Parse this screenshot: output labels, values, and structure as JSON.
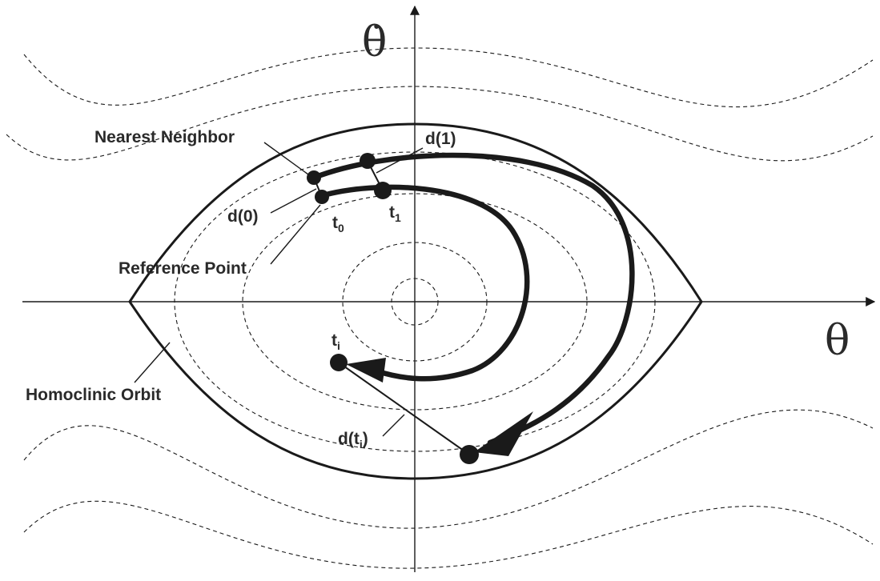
{
  "axes": {
    "x_symbol": "θ",
    "y_symbol": "θ̇"
  },
  "labels": {
    "nearest_neighbor": "Nearest Neighbor",
    "reference_point": "Reference Point",
    "homoclinic_orbit": "Homoclinic Orbit",
    "d0": "d(0)",
    "d1": "d(1)",
    "dti_prefix": "d(t",
    "dti_sub": "i",
    "dti_suffix": ")",
    "t0_base": "t",
    "t0_sub": "0",
    "t1_base": "t",
    "t1_sub": "1",
    "ti_base": "t",
    "ti_sub": "i"
  }
}
